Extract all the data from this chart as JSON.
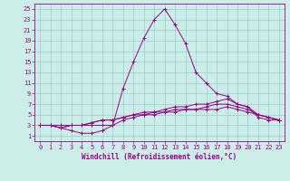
{
  "xlabel": "Windchill (Refroidissement éolien,°C)",
  "background_color": "#cceee8",
  "grid_color": "#99cccc",
  "line_color": "#990088",
  "xlim": [
    -0.5,
    23.5
  ],
  "ylim": [
    0,
    26
  ],
  "yticks": [
    1,
    3,
    5,
    7,
    9,
    11,
    13,
    15,
    17,
    19,
    21,
    23,
    25
  ],
  "xticks": [
    0,
    1,
    2,
    3,
    4,
    5,
    6,
    7,
    8,
    9,
    10,
    11,
    12,
    13,
    14,
    15,
    16,
    17,
    18,
    19,
    20,
    21,
    22,
    23
  ],
  "lines": [
    [
      3,
      3,
      3,
      3,
      3,
      3,
      3,
      3,
      10,
      15,
      19.5,
      23,
      25,
      22,
      18.5,
      13,
      11,
      9,
      8.5,
      7,
      6.5,
      5,
      4.5,
      4
    ],
    [
      3,
      3,
      2.5,
      2,
      1.5,
      1.5,
      2,
      3,
      4,
      4.5,
      5,
      5.5,
      6,
      6.5,
      6.5,
      7,
      7,
      7.5,
      8,
      7,
      6.5,
      4.5,
      4,
      4
    ],
    [
      3,
      3,
      2.5,
      3,
      3,
      3.5,
      4,
      4,
      4.5,
      5,
      5.5,
      5.5,
      5.5,
      6,
      6,
      6,
      6.5,
      7,
      7,
      6.5,
      6,
      5,
      4.5,
      4
    ],
    [
      3,
      3,
      2.5,
      3,
      3,
      3.5,
      4,
      4,
      4.5,
      5,
      5,
      5,
      5.5,
      5.5,
      6,
      6,
      6,
      6,
      6.5,
      6,
      5.5,
      5,
      4.5,
      4
    ]
  ],
  "tick_fontsize": 5.0,
  "xlabel_fontsize": 5.5
}
